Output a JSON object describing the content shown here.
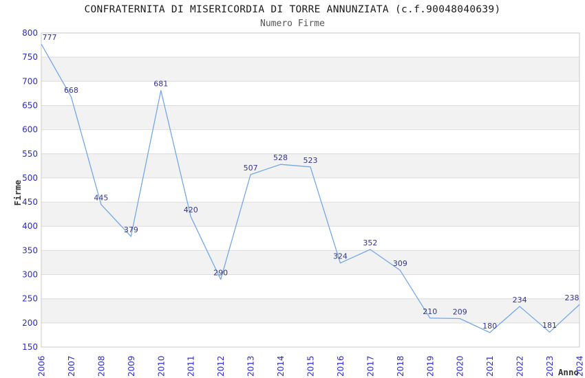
{
  "header": {
    "title": "CONFRATERNITA DI MISERICORDIA DI TORRE ANNUNZIATA (c.f.90048040639)",
    "subtitle": "Numero Firme"
  },
  "chart_data": {
    "type": "line",
    "title": "CONFRATERNITA DI MISERICORDIA DI TORRE ANNUNZIATA (c.f.90048040639)",
    "subtitle": "Numero Firme",
    "xlabel": "Anno",
    "ylabel": "Firme",
    "categories": [
      "2006",
      "2007",
      "2008",
      "2009",
      "2010",
      "2011",
      "2012",
      "2013",
      "2014",
      "2015",
      "2016",
      "2017",
      "2018",
      "2019",
      "2020",
      "2021",
      "2022",
      "2023",
      "2024"
    ],
    "series": [
      {
        "name": "Numero Firme",
        "values": [
          777,
          668,
          445,
          379,
          681,
          420,
          290,
          507,
          528,
          523,
          324,
          352,
          309,
          210,
          209,
          180,
          234,
          181,
          238
        ]
      }
    ],
    "ylim": [
      150,
      800
    ],
    "ytick_step": 50,
    "ytick_labels": [
      "800",
      "750",
      "700",
      "650",
      "600",
      "550",
      "500",
      "450",
      "400",
      "350",
      "300",
      "250",
      "200",
      "150"
    ],
    "grid": "horizontal",
    "legend": "none",
    "data_labels": true,
    "colors": {
      "line": "#74a7e7",
      "data_label": "#333388",
      "tick_label": "#2b2bcc",
      "band": "#f2f2f2",
      "band_alt": "#ffffff",
      "gridline": "#dcdcdc",
      "plot_border": "#c9c9c9",
      "title": "#1a1a1a",
      "subtitle": "#555555",
      "axis_title": "#333333",
      "background": "#ffffff"
    }
  }
}
